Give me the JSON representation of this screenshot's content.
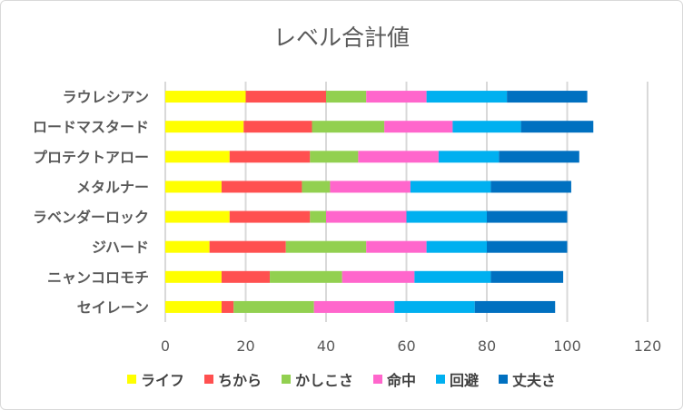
{
  "chart_data": {
    "type": "bar",
    "orientation": "horizontal",
    "stacked": true,
    "title": "レベル合計値",
    "categories": [
      "ラウレシアン",
      "ロードマスタード",
      "プロテクトアロー",
      "メタルナー",
      "ラベンダーロック",
      "ジハード",
      "ニャンコロモチ",
      "セイレーン"
    ],
    "series": [
      {
        "name": "ライフ",
        "color": "#FFFF00",
        "values": [
          20,
          19.5,
          16,
          14,
          16,
          11,
          14,
          14
        ]
      },
      {
        "name": "ちから",
        "color": "#FF5050",
        "values": [
          20,
          17,
          20,
          20,
          20,
          19,
          12,
          3
        ]
      },
      {
        "name": "かしこさ",
        "color": "#92D050",
        "values": [
          10,
          18,
          12,
          7,
          4,
          20,
          18,
          20
        ]
      },
      {
        "name": "命中",
        "color": "#FF66CC",
        "values": [
          15,
          17,
          20,
          20,
          20,
          15,
          18,
          20
        ]
      },
      {
        "name": "回避",
        "color": "#00B0F0",
        "values": [
          20,
          17,
          15,
          20,
          20,
          15,
          19,
          20
        ]
      },
      {
        "name": "丈夫さ",
        "color": "#0070C0",
        "values": [
          20,
          18,
          20,
          20,
          20,
          20,
          18,
          20
        ]
      }
    ],
    "xlim": [
      0,
      120
    ],
    "xticks": [
      "0",
      "20",
      "40",
      "60",
      "80",
      "100",
      "120"
    ],
    "grid": true,
    "legend": "bottom"
  }
}
